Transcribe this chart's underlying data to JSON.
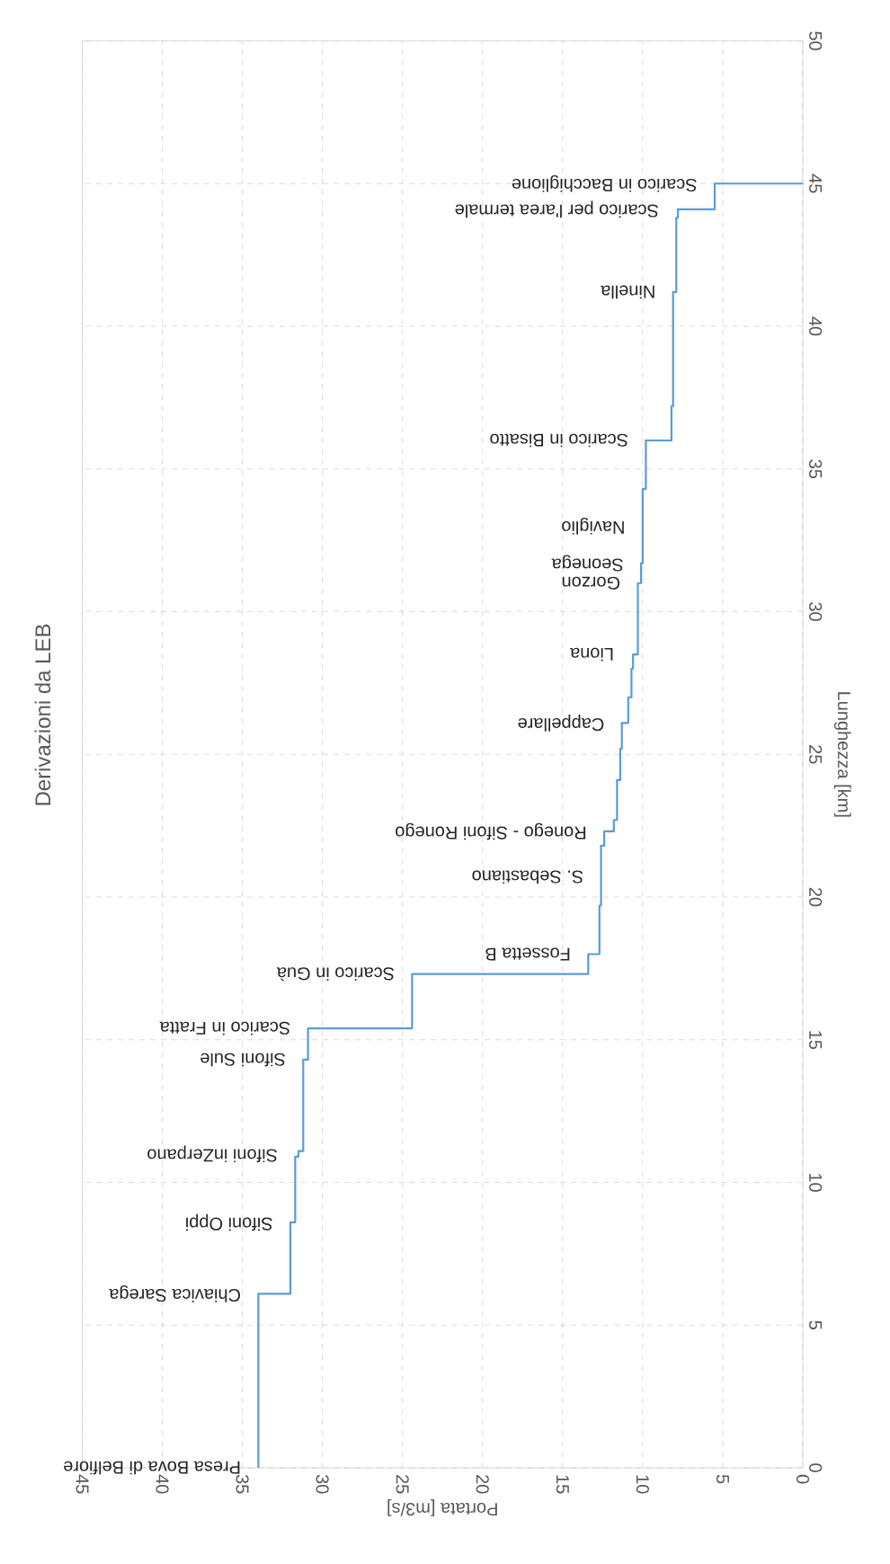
{
  "chart_data": {
    "type": "line",
    "title": "Derivazioni da LEB",
    "xlabel": "Portata [m3/s]",
    "ylabel": "Lunghezza [km]",
    "xlim": [
      45,
      0
    ],
    "xticks": [
      45,
      40,
      35,
      30,
      25,
      20,
      15,
      10,
      5,
      0
    ],
    "ylim": [
      0,
      50
    ],
    "yticks": [
      0,
      5,
      10,
      15,
      20,
      25,
      30,
      35,
      40,
      45,
      50
    ],
    "grid": true,
    "marker": "none",
    "series": [
      {
        "color": "#5b9bd5",
        "x": [
          34,
          34,
          32.0,
          32.0,
          31.7,
          31.7,
          31.5,
          31.5,
          31.2,
          31.2,
          30.9,
          30.9,
          24.4,
          24.4,
          13.4,
          13.4,
          12.7,
          12.7,
          12.6,
          12.6,
          12.4,
          12.4,
          11.8,
          11.8,
          11.6,
          11.6,
          11.4,
          11.4,
          11.3,
          11.3,
          10.9,
          10.9,
          10.7,
          10.7,
          10.6,
          10.6,
          10.3,
          10.3,
          10.1,
          10.1,
          10.0,
          10.0,
          9.8,
          9.8,
          8.2,
          8.2,
          8.1,
          8.1,
          7.9,
          7.9,
          7.8,
          7.8,
          5.5,
          5.5,
          0
        ],
        "values": [
          0,
          6.1,
          6.1,
          8.6,
          8.6,
          10.9,
          10.9,
          11.1,
          11.1,
          14.3,
          14.3,
          15.4,
          15.4,
          17.3,
          17.3,
          18.0,
          18.0,
          19.7,
          19.7,
          21.8,
          21.8,
          22.3,
          22.3,
          22.7,
          22.7,
          24.1,
          24.1,
          25.2,
          25.2,
          26.1,
          26.1,
          27.0,
          27.0,
          28.0,
          28.0,
          28.5,
          28.5,
          31.0,
          31.0,
          31.7,
          31.7,
          34.3,
          34.3,
          36.0,
          36.0,
          37.2,
          37.2,
          41.2,
          41.2,
          43.8,
          43.8,
          44.1,
          44.1,
          45.0,
          45.0
        ]
      }
    ],
    "annotations": [
      {
        "text": "Presa Bova di Belfiore",
        "x": 34,
        "y": 0
      },
      {
        "text": "Chiavica Sarega",
        "x": 34,
        "y": 6.1
      },
      {
        "text": "Sifoni Oppi",
        "x": 32.0,
        "y": 8.6
      },
      {
        "text": "Sifoni inZerpano",
        "x": 31.7,
        "y": 11.0
      },
      {
        "text": "Sifoni Sule",
        "x": 31.2,
        "y": 14.3
      },
      {
        "text": "Scarico in Fratta",
        "x": 30.9,
        "y": 15.4
      },
      {
        "text": "Scarico in Guà",
        "x": 24.4,
        "y": 17.3
      },
      {
        "text": "Fossetta B",
        "x": 13.4,
        "y": 18.0
      },
      {
        "text": "S. Sebastiano",
        "x": 12.6,
        "y": 20.7
      },
      {
        "text": "Ronego - Sifoni Ronego",
        "x": 12.4,
        "y": 22.3
      },
      {
        "text": "Cappellare",
        "x": 11.3,
        "y": 26.1
      },
      {
        "text": "Liona",
        "x": 10.7,
        "y": 28.5
      },
      {
        "text": "Gorzon",
        "x": 10.3,
        "y": 31.0
      },
      {
        "text": "Seonega",
        "x": 10.1,
        "y": 31.7
      },
      {
        "text": "Naviglio",
        "x": 10.0,
        "y": 33.0
      },
      {
        "text": "Scarico in Bisatto",
        "x": 9.8,
        "y": 36.0
      },
      {
        "text": "Ninella",
        "x": 8.1,
        "y": 41.2
      },
      {
        "text": "Scarico per l'area termale",
        "x": 7.9,
        "y": 44.1
      },
      {
        "text": "Scarico in Bacchiglione",
        "x": 5.5,
        "y": 45.0
      }
    ]
  }
}
